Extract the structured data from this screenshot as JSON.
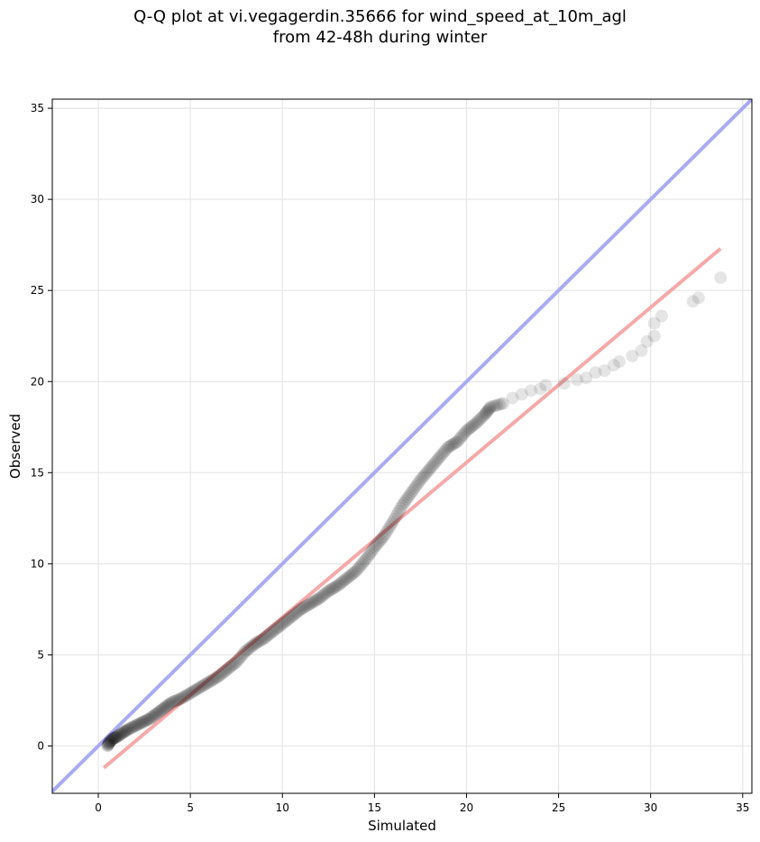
{
  "chart_data": {
    "type": "scatter",
    "title_lines": [
      "Q-Q plot at vi.vegagerdin.35666 for wind_speed_at_10m_agl",
      "from 42-48h during winter"
    ],
    "xlabel": "Simulated",
    "ylabel": "Observed",
    "xlim": [
      -2.5,
      35.5
    ],
    "ylim": [
      -2.6,
      35.5
    ],
    "xticks": [
      0,
      5,
      10,
      15,
      20,
      25,
      30,
      35
    ],
    "yticks": [
      0,
      5,
      10,
      15,
      20,
      25,
      30,
      35
    ],
    "grid": true,
    "colors": {
      "points": "#000000",
      "identity_line": "#a9abf2",
      "fit_line": "#f5a9a9",
      "grid": "#e6e6e6"
    },
    "identity_line": {
      "x": [
        -2.5,
        35.5
      ],
      "y": [
        -2.5,
        35.5
      ]
    },
    "fit_line": {
      "x": [
        0.3,
        33.8
      ],
      "y": [
        -1.2,
        27.3
      ]
    },
    "series": [
      {
        "points": [
          [
            0.5,
            0.0
          ],
          [
            0.6,
            0.2
          ],
          [
            0.8,
            0.4
          ],
          [
            1.0,
            0.5
          ],
          [
            1.3,
            0.7
          ],
          [
            1.6,
            0.9
          ],
          [
            2.0,
            1.1
          ],
          [
            2.4,
            1.3
          ],
          [
            2.8,
            1.5
          ],
          [
            3.2,
            1.8
          ],
          [
            3.6,
            2.1
          ],
          [
            4.0,
            2.4
          ],
          [
            4.5,
            2.6
          ],
          [
            5.0,
            2.9
          ],
          [
            5.5,
            3.2
          ],
          [
            6.0,
            3.5
          ],
          [
            6.5,
            3.8
          ],
          [
            7.0,
            4.2
          ],
          [
            7.5,
            4.6
          ],
          [
            8.0,
            5.2
          ],
          [
            8.5,
            5.6
          ],
          [
            9.0,
            5.9
          ],
          [
            9.5,
            6.3
          ],
          [
            10.0,
            6.7
          ],
          [
            10.5,
            7.1
          ],
          [
            11.0,
            7.5
          ],
          [
            11.5,
            7.8
          ],
          [
            12.0,
            8.1
          ],
          [
            12.5,
            8.5
          ],
          [
            13.0,
            8.8
          ],
          [
            13.5,
            9.2
          ],
          [
            14.0,
            9.6
          ],
          [
            14.5,
            10.2
          ],
          [
            15.0,
            10.9
          ],
          [
            15.5,
            11.5
          ],
          [
            16.0,
            12.3
          ],
          [
            16.5,
            13.2
          ],
          [
            17.0,
            13.9
          ],
          [
            17.5,
            14.6
          ],
          [
            18.0,
            15.2
          ],
          [
            18.5,
            15.8
          ],
          [
            19.0,
            16.4
          ],
          [
            19.5,
            16.7
          ],
          [
            20.0,
            17.3
          ],
          [
            20.5,
            17.7
          ],
          [
            21.0,
            18.2
          ],
          [
            21.3,
            18.6
          ],
          [
            22.0,
            18.8
          ],
          [
            22.5,
            19.1
          ],
          [
            23.0,
            19.3
          ],
          [
            23.5,
            19.5
          ],
          [
            24.0,
            19.6
          ],
          [
            24.3,
            19.8
          ],
          [
            25.3,
            19.9
          ],
          [
            26.0,
            20.1
          ],
          [
            26.5,
            20.2
          ],
          [
            27.0,
            20.5
          ],
          [
            27.5,
            20.6
          ],
          [
            28.0,
            20.9
          ],
          [
            28.3,
            21.1
          ],
          [
            29.0,
            21.4
          ],
          [
            29.5,
            21.7
          ],
          [
            29.8,
            22.2
          ],
          [
            30.2,
            22.5
          ],
          [
            30.2,
            23.2
          ],
          [
            30.6,
            23.6
          ],
          [
            32.3,
            24.4
          ],
          [
            32.6,
            24.6
          ],
          [
            33.8,
            25.7
          ]
        ]
      }
    ]
  }
}
